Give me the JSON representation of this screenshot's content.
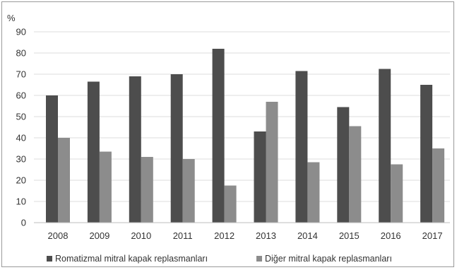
{
  "chart_data": {
    "type": "bar",
    "ylabel": "%",
    "ylim": [
      0,
      90
    ],
    "yticks": [
      "0",
      "10",
      "20",
      "30",
      "40",
      "50",
      "60",
      "70",
      "80",
      "90"
    ],
    "categories": [
      "2008",
      "2009",
      "2010",
      "2011",
      "2012",
      "2013",
      "2014",
      "2015",
      "2016",
      "2017"
    ],
    "series": [
      {
        "name": "Romatizmal mitral kapak replasmanları",
        "color": "#4d4d4d",
        "values": [
          60,
          66.5,
          69,
          70,
          82,
          43,
          71.5,
          54.5,
          72.5,
          65
        ]
      },
      {
        "name": "Diğer mitral kapak replasmanları",
        "color": "#8c8c8c",
        "values": [
          40,
          33.5,
          31,
          30,
          17.5,
          57,
          28.5,
          45.5,
          27.5,
          35
        ]
      }
    ],
    "grid": true,
    "legend_position": "bottom"
  }
}
